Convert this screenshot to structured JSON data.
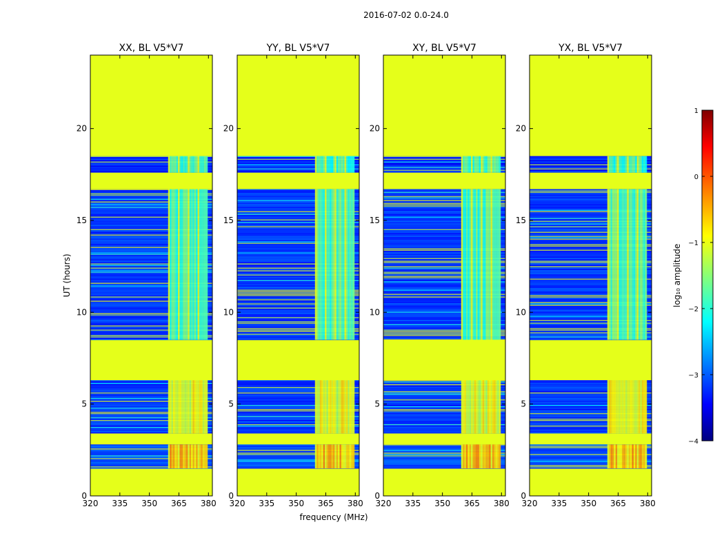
{
  "chart_data": {
    "type": "heatmap",
    "suptitle": "2016-07-02 0.0-24.0",
    "panels": [
      {
        "title": "XX, BL V5*V7",
        "pol": "XX"
      },
      {
        "title": "YY, BL V5*V7",
        "pol": "YY"
      },
      {
        "title": "XY, BL V5*V7",
        "pol": "XY"
      },
      {
        "title": "YX, BL V5*V7",
        "pol": "YX"
      }
    ],
    "xlabel": "frequency (MHz)",
    "ylabel": "UT (hours)",
    "xlim": [
      320,
      382
    ],
    "ylim": [
      0,
      24
    ],
    "xticks": [
      320,
      335,
      350,
      365,
      380
    ],
    "yticks": [
      0,
      5,
      10,
      15,
      20
    ],
    "rfi_band_mhz": [
      359.5,
      379.5
    ],
    "flagged_value_log10_amp": -1,
    "data_blocks_ut": [
      {
        "ut_range": [
          1.5,
          2.8
        ],
        "background_log10_amp": -3.0,
        "rfi_log10_amp": -0.6
      },
      {
        "ut_range": [
          3.4,
          6.3
        ],
        "background_log10_amp": -3.1,
        "rfi_log10_amp": -1.0
      },
      {
        "ut_range": [
          8.5,
          16.7
        ],
        "background_log10_amp": -3.1,
        "rfi_log10_amp": -1.7
      },
      {
        "ut_range": [
          17.6,
          18.5
        ],
        "background_log10_amp": -3.2,
        "rfi_log10_amp": -1.8
      }
    ],
    "colorbar": {
      "label": "log₁₀ amplitude",
      "range": [
        -4,
        1
      ],
      "ticks": [
        "1",
        "0",
        "−1",
        "−2",
        "−3",
        "−4"
      ],
      "colormap": "jet"
    }
  }
}
